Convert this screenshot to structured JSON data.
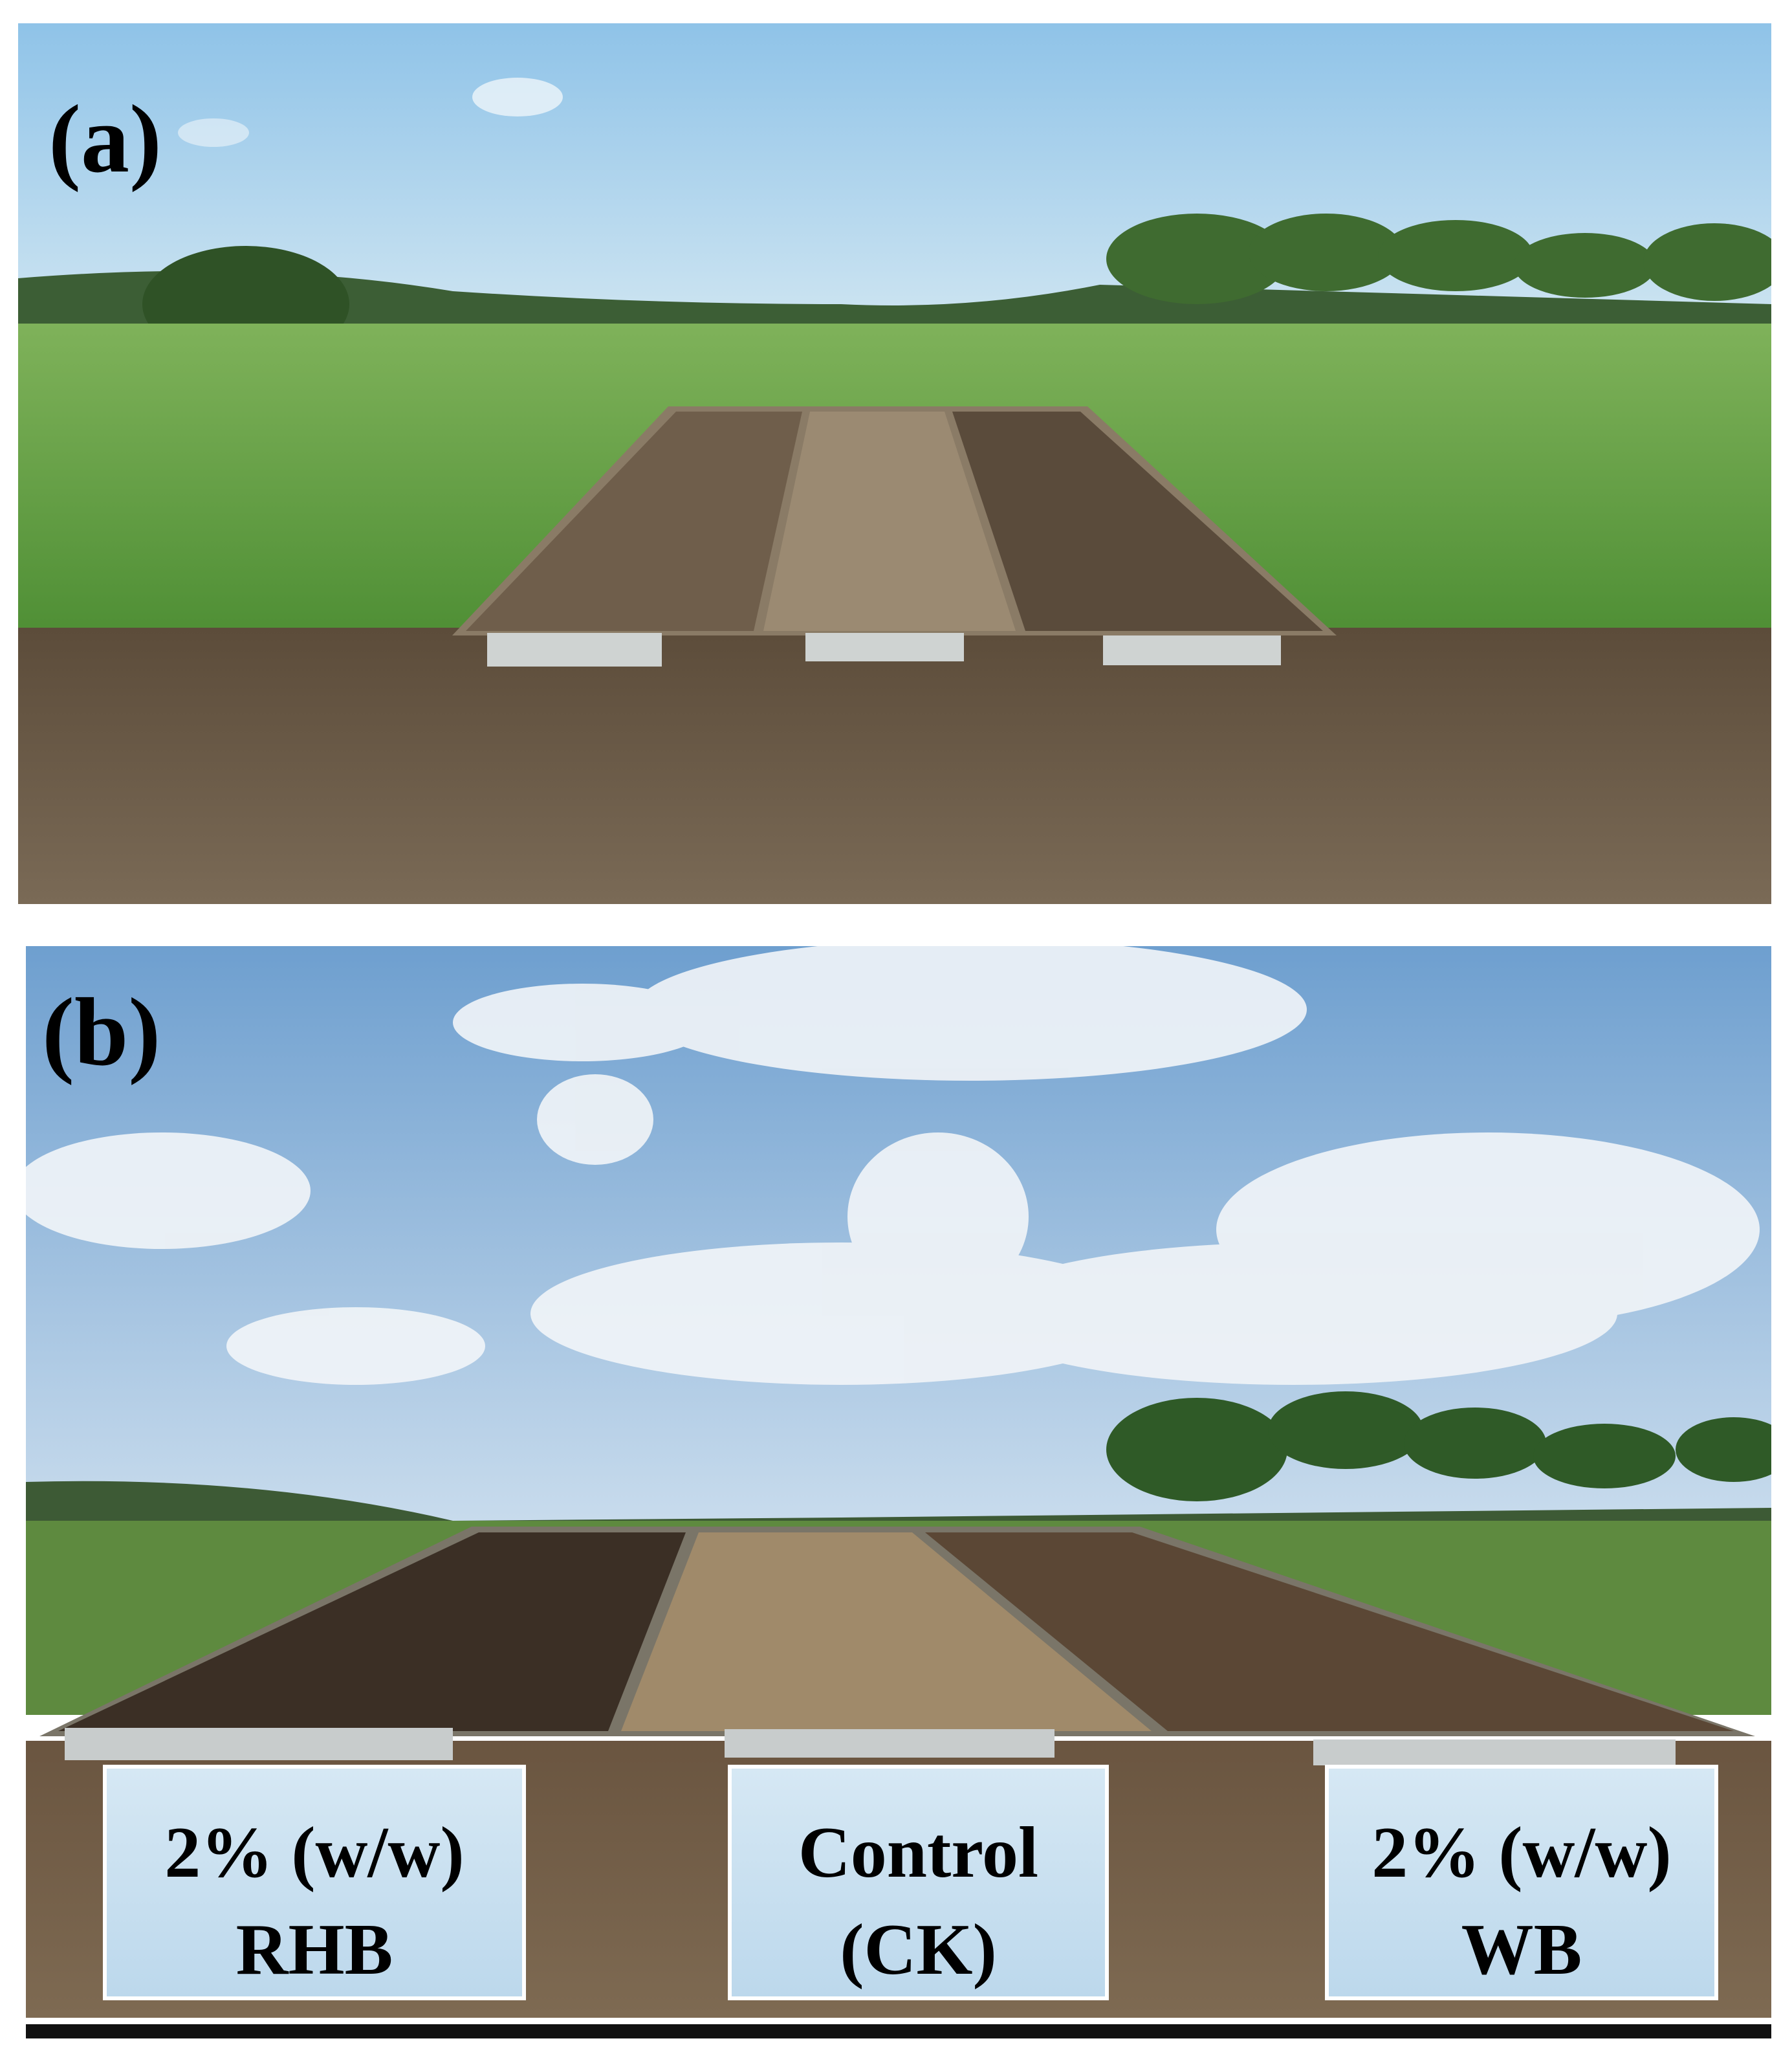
{
  "panels": [
    {
      "label": "(a)"
    },
    {
      "label": "(b)",
      "plot_labels": [
        {
          "lines": [
            "2% (w/w)",
            "RHB"
          ]
        },
        {
          "lines": [
            "Control",
            "(CK)"
          ]
        },
        {
          "lines": [
            "2% (w/w)",
            "WB"
          ]
        }
      ]
    }
  ]
}
